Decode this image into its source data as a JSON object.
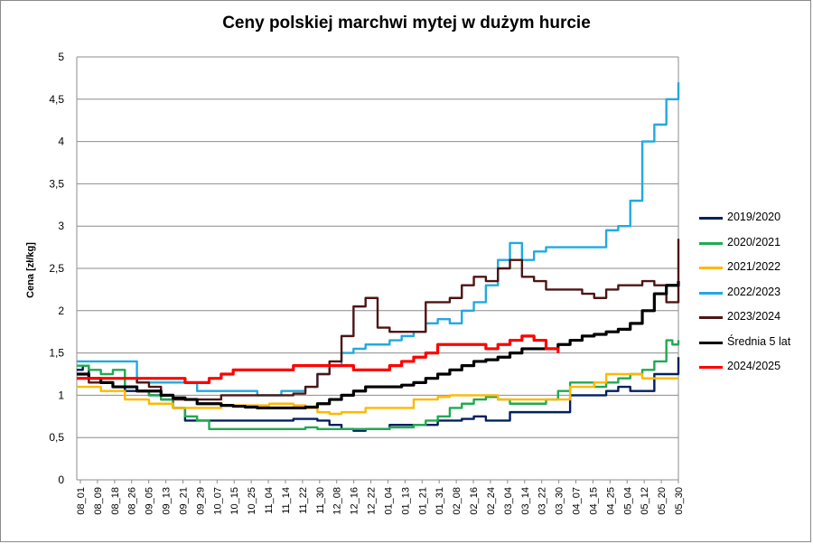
{
  "chart_data": {
    "type": "line",
    "title": "Ceny polskiej marchwi mytej w dużym hurcie",
    "xlabel": "",
    "ylabel": "Cena [zł/kg]",
    "ylim": [
      0,
      5
    ],
    "yticks": [
      "0",
      "0,5",
      "1",
      "1,5",
      "2",
      "2,5",
      "3",
      "3,5",
      "4",
      "4,5",
      "5"
    ],
    "grid": "horizontal",
    "legend_position": "right",
    "x_tick_labels": [
      "08_01",
      "08_09",
      "08_18",
      "08_26",
      "09_05",
      "09_13",
      "09_21",
      "09_29",
      "10_07",
      "10_15",
      "10_25",
      "11_04",
      "11_14",
      "11_22",
      "11_30",
      "12_08",
      "12_16",
      "12_22",
      "01_04",
      "01_13",
      "01_21",
      "01_31",
      "02_08",
      "02_16",
      "02_24",
      "03_04",
      "03_14",
      "03_22",
      "03_30",
      "04_07",
      "04_15",
      "04_25",
      "05_04",
      "05_12",
      "05_20",
      "05_30"
    ],
    "x_range": [
      0,
      100
    ],
    "series": [
      {
        "name": "2019/2020",
        "color": "#002060",
        "x": [
          0,
          1,
          2,
          3,
          4,
          6,
          8,
          10,
          12,
          14,
          16,
          18,
          20,
          22,
          26,
          30,
          34,
          36,
          38,
          40,
          42,
          44,
          46,
          48,
          50,
          52,
          54,
          56,
          58,
          60,
          62,
          64,
          66,
          68,
          70,
          72,
          74,
          75,
          76,
          78,
          80,
          82,
          84,
          86,
          88,
          90,
          92,
          93,
          94,
          96,
          98,
          100
        ],
        "y": [
          1.3,
          1.35,
          1.2,
          1.2,
          1.15,
          1.1,
          1.05,
          1.05,
          1.0,
          0.95,
          0.85,
          0.7,
          0.7,
          0.7,
          0.7,
          0.7,
          0.7,
          0.72,
          0.72,
          0.7,
          0.65,
          0.6,
          0.58,
          0.6,
          0.6,
          0.65,
          0.65,
          0.65,
          0.65,
          0.7,
          0.7,
          0.72,
          0.75,
          0.7,
          0.7,
          0.8,
          0.8,
          0.8,
          0.8,
          0.8,
          0.8,
          1.0,
          1.0,
          1.0,
          1.05,
          1.1,
          1.05,
          1.05,
          1.05,
          1.25,
          1.25,
          1.45
        ]
      },
      {
        "name": "2020/2021",
        "color": "#1faa50",
        "x": [
          0,
          2,
          3,
          4,
          6,
          8,
          10,
          12,
          14,
          16,
          18,
          20,
          22,
          24,
          26,
          28,
          30,
          32,
          34,
          36,
          38,
          40,
          42,
          44,
          46,
          48,
          50,
          52,
          54,
          56,
          58,
          60,
          62,
          64,
          66,
          68,
          70,
          72,
          74,
          76,
          78,
          80,
          82,
          84,
          86,
          88,
          90,
          92,
          94,
          96,
          98,
          99,
          100
        ],
        "y": [
          1.35,
          1.3,
          1.3,
          1.25,
          1.3,
          1.1,
          1.05,
          1.0,
          0.95,
          0.85,
          0.75,
          0.7,
          0.6,
          0.6,
          0.6,
          0.6,
          0.6,
          0.6,
          0.6,
          0.6,
          0.62,
          0.6,
          0.6,
          0.6,
          0.6,
          0.6,
          0.6,
          0.62,
          0.62,
          0.65,
          0.7,
          0.75,
          0.85,
          0.9,
          0.95,
          0.98,
          0.95,
          0.9,
          0.9,
          0.9,
          0.95,
          1.05,
          1.15,
          1.15,
          1.1,
          1.15,
          1.2,
          1.25,
          1.3,
          1.4,
          1.65,
          1.6,
          1.65
        ]
      },
      {
        "name": "2021/2022",
        "color": "#ffb800",
        "x": [
          0,
          2,
          4,
          6,
          8,
          10,
          12,
          14,
          16,
          18,
          20,
          22,
          24,
          26,
          28,
          30,
          32,
          34,
          36,
          38,
          40,
          42,
          44,
          46,
          48,
          50,
          52,
          54,
          56,
          58,
          60,
          62,
          64,
          66,
          68,
          70,
          72,
          74,
          76,
          78,
          80,
          82,
          84,
          86,
          88,
          90,
          92,
          94,
          96,
          98,
          100
        ],
        "y": [
          1.1,
          1.1,
          1.05,
          1.05,
          0.95,
          0.95,
          0.9,
          0.9,
          0.85,
          0.85,
          0.85,
          0.85,
          0.88,
          0.88,
          0.88,
          0.88,
          0.9,
          0.9,
          0.88,
          0.85,
          0.8,
          0.78,
          0.8,
          0.8,
          0.85,
          0.85,
          0.85,
          0.85,
          0.95,
          0.95,
          0.98,
          1.0,
          1.0,
          1.0,
          1.0,
          0.95,
          0.95,
          0.95,
          0.95,
          0.95,
          0.95,
          1.1,
          1.1,
          1.15,
          1.25,
          1.25,
          1.25,
          1.2,
          1.2,
          1.2,
          1.2
        ]
      },
      {
        "name": "2022/2023",
        "color": "#21a9e1",
        "x": [
          0,
          2,
          4,
          6,
          8,
          10,
          12,
          14,
          16,
          18,
          20,
          22,
          24,
          26,
          28,
          30,
          32,
          34,
          36,
          38,
          40,
          42,
          44,
          46,
          48,
          50,
          52,
          54,
          56,
          58,
          60,
          62,
          64,
          66,
          68,
          70,
          72,
          74,
          76,
          78,
          80,
          82,
          84,
          86,
          88,
          90,
          92,
          94,
          96,
          98,
          100
        ],
        "y": [
          1.4,
          1.4,
          1.4,
          1.4,
          1.4,
          1.15,
          1.15,
          1.15,
          1.15,
          1.15,
          1.05,
          1.05,
          1.05,
          1.05,
          1.05,
          1.0,
          1.0,
          1.05,
          1.05,
          1.1,
          1.25,
          1.35,
          1.5,
          1.55,
          1.6,
          1.6,
          1.65,
          1.7,
          1.75,
          1.85,
          1.9,
          1.85,
          2.0,
          2.1,
          2.3,
          2.6,
          2.8,
          2.6,
          2.7,
          2.75,
          2.75,
          2.75,
          2.75,
          2.75,
          2.95,
          3.0,
          3.3,
          4.0,
          4.2,
          4.5,
          4.7
        ]
      },
      {
        "name": "2023/2024",
        "color": "#4e1414",
        "x": [
          0,
          2,
          4,
          6,
          8,
          10,
          12,
          14,
          16,
          18,
          20,
          22,
          24,
          26,
          28,
          30,
          32,
          34,
          36,
          38,
          40,
          42,
          44,
          46,
          48,
          50,
          52,
          54,
          56,
          58,
          60,
          62,
          64,
          66,
          68,
          70,
          72,
          74,
          76,
          78,
          80,
          82,
          84,
          86,
          88,
          90,
          92,
          94,
          96,
          98,
          100
        ],
        "y": [
          1.2,
          1.15,
          1.2,
          1.2,
          1.2,
          1.15,
          1.1,
          1.0,
          0.95,
          0.95,
          0.95,
          0.95,
          1.0,
          1.0,
          1.0,
          1.0,
          1.0,
          1.0,
          1.02,
          1.1,
          1.25,
          1.4,
          1.7,
          2.05,
          2.15,
          1.8,
          1.75,
          1.75,
          1.75,
          2.1,
          2.1,
          2.15,
          2.3,
          2.4,
          2.35,
          2.5,
          2.6,
          2.4,
          2.35,
          2.25,
          2.25,
          2.25,
          2.2,
          2.15,
          2.25,
          2.3,
          2.3,
          2.35,
          2.3,
          2.1,
          2.85
        ]
      },
      {
        "name": "Średnia 5 lat",
        "color": "#000000",
        "x": [
          0,
          2,
          4,
          6,
          8,
          10,
          12,
          14,
          16,
          18,
          20,
          22,
          24,
          26,
          28,
          30,
          32,
          34,
          36,
          38,
          40,
          42,
          44,
          46,
          48,
          50,
          52,
          54,
          56,
          58,
          60,
          62,
          64,
          66,
          68,
          70,
          72,
          74,
          76,
          78,
          80,
          82,
          84,
          86,
          88,
          90,
          92,
          94,
          96,
          98,
          100
        ],
        "y": [
          1.25,
          1.2,
          1.15,
          1.1,
          1.1,
          1.05,
          1.05,
          1.0,
          0.97,
          0.95,
          0.9,
          0.9,
          0.88,
          0.87,
          0.86,
          0.85,
          0.85,
          0.85,
          0.85,
          0.86,
          0.9,
          0.95,
          1.0,
          1.05,
          1.1,
          1.1,
          1.1,
          1.12,
          1.15,
          1.2,
          1.25,
          1.3,
          1.35,
          1.4,
          1.42,
          1.45,
          1.5,
          1.55,
          1.55,
          1.55,
          1.6,
          1.65,
          1.7,
          1.72,
          1.75,
          1.78,
          1.85,
          2.0,
          2.2,
          2.3,
          2.35
        ]
      },
      {
        "name": "2024/2025",
        "color": "#ff0000",
        "x": [
          0,
          2,
          4,
          6,
          8,
          10,
          12,
          14,
          16,
          18,
          20,
          22,
          24,
          26,
          28,
          30,
          32,
          34,
          36,
          38,
          40,
          42,
          44,
          46,
          48,
          50,
          52,
          54,
          56,
          58,
          60,
          62,
          64,
          66,
          68,
          70,
          72,
          74,
          76,
          78,
          80
        ],
        "y": [
          1.2,
          1.2,
          1.2,
          1.2,
          1.2,
          1.2,
          1.2,
          1.2,
          1.2,
          1.15,
          1.15,
          1.2,
          1.25,
          1.3,
          1.3,
          1.3,
          1.3,
          1.3,
          1.35,
          1.35,
          1.35,
          1.35,
          1.35,
          1.3,
          1.3,
          1.3,
          1.35,
          1.4,
          1.45,
          1.5,
          1.6,
          1.6,
          1.6,
          1.6,
          1.55,
          1.6,
          1.65,
          1.7,
          1.65,
          1.55,
          1.5
        ]
      }
    ]
  }
}
